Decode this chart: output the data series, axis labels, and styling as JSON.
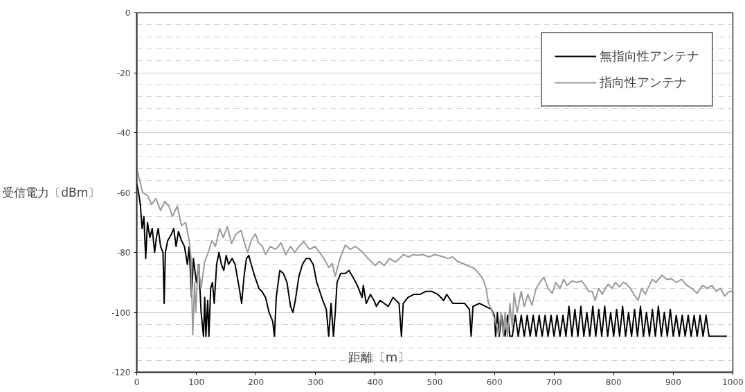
{
  "chart_data": {
    "type": "line",
    "xlabel": "距離〔m〕",
    "ylabel": "受信電力〔dBm〕",
    "xlim": [
      0,
      1000
    ],
    "ylim": [
      -120,
      0
    ],
    "xticks": [
      0,
      100,
      200,
      300,
      400,
      500,
      600,
      700,
      800,
      900,
      1000
    ],
    "yticks": [
      -120,
      -100,
      -80,
      -60,
      -40,
      -20,
      0
    ],
    "grid": true,
    "legend": "top right",
    "line_style": "solid",
    "marker": "none",
    "series": [
      {
        "name": "無指向性アンテナ",
        "color": "#000000",
        "x": [
          0,
          3,
          6,
          9,
          12,
          15,
          18,
          22,
          26,
          30,
          33,
          36,
          40,
          44,
          46,
          48,
          52,
          58,
          62,
          66,
          70,
          75,
          80,
          85,
          88,
          92,
          95,
          100,
          104,
          108,
          112,
          114,
          116,
          119,
          121,
          124,
          127,
          130,
          134,
          138,
          142,
          146,
          150,
          154,
          160,
          165,
          172,
          176,
          180,
          184,
          188,
          192,
          198,
          205,
          210,
          216,
          222,
          228,
          231,
          234,
          240,
          246,
          252,
          258,
          262,
          266,
          272,
          278,
          284,
          290,
          296,
          302,
          312,
          318,
          322,
          326,
          330,
          333,
          336,
          342,
          350,
          356,
          362,
          370,
          378,
          380,
          385,
          392,
          398,
          402,
          408,
          415,
          422,
          430,
          440,
          444,
          447,
          455,
          465,
          475,
          485,
          495,
          505,
          515,
          520,
          530,
          540,
          550,
          558,
          561,
          564,
          575,
          585,
          595,
          600,
          602,
          605,
          608,
          612,
          618,
          622,
          626,
          630,
          635,
          640,
          645,
          650,
          655,
          660,
          665,
          670,
          675,
          680,
          685,
          690,
          695,
          700,
          705,
          710,
          715,
          720,
          725,
          730,
          735,
          740,
          745,
          750,
          755,
          760,
          765,
          770,
          775,
          780,
          785,
          790,
          795,
          800,
          805,
          810,
          815,
          820,
          825,
          830,
          835,
          840,
          845,
          850,
          855,
          860,
          865,
          870,
          875,
          880,
          885,
          890,
          895,
          900,
          905,
          910,
          915,
          920,
          925,
          930,
          935,
          940,
          945,
          950,
          955,
          960,
          990
        ],
        "values": [
          -57,
          -60,
          -64,
          -72,
          -68,
          -82,
          -70,
          -75,
          -72,
          -80,
          -75,
          -72,
          -78,
          -80,
          -97,
          -80,
          -76,
          -74,
          -72,
          -78,
          -73,
          -76,
          -78,
          -84,
          -78,
          -95,
          -82,
          -90,
          -84,
          -100,
          -108,
          -95,
          -108,
          -96,
          -108,
          -92,
          -90,
          -97,
          -84,
          -80,
          -84,
          -86,
          -81,
          -84,
          -82,
          -84,
          -92,
          -97,
          -88,
          -82,
          -81,
          -84,
          -88,
          -92,
          -93,
          -95,
          -100,
          -103,
          -108,
          -95,
          -86,
          -87,
          -90,
          -98,
          -100,
          -96,
          -88,
          -84,
          -82,
          -82,
          -84,
          -90,
          -96,
          -99,
          -108,
          -97,
          -108,
          -100,
          -90,
          -87,
          -87,
          -86,
          -88,
          -91,
          -95,
          -91,
          -97,
          -94,
          -96,
          -98,
          -96,
          -97,
          -98,
          -95,
          -97,
          -108,
          -97,
          -95,
          -94,
          -94,
          -93,
          -93,
          -94,
          -96,
          -94,
          -97,
          -97,
          -97,
          -99,
          -108,
          -98,
          -97,
          -98,
          -99,
          -101,
          -108,
          -100,
          -108,
          -101,
          -108,
          -101,
          -108,
          -108,
          -101,
          -108,
          -101,
          -108,
          -101,
          -108,
          -101,
          -108,
          -101,
          -108,
          -101,
          -108,
          -101,
          -108,
          -101,
          -108,
          -101,
          -108,
          -98,
          -108,
          -99,
          -108,
          -98,
          -108,
          -100,
          -108,
          -98,
          -108,
          -99,
          -108,
          -98,
          -108,
          -100,
          -108,
          -99,
          -108,
          -98,
          -108,
          -100,
          -108,
          -99,
          -108,
          -98,
          -108,
          -100,
          -108,
          -99,
          -108,
          -98,
          -108,
          -100,
          -108,
          -99,
          -108,
          -101,
          -108,
          -101,
          -108,
          -101,
          -108,
          -101,
          -108,
          -101,
          -108,
          -101,
          -108,
          -108
        ]
      },
      {
        "name": "指向性アンテナ",
        "color": "#999999",
        "x": [
          0,
          5,
          10,
          18,
          25,
          32,
          40,
          47,
          54,
          60,
          68,
          75,
          82,
          88,
          91,
          94,
          97,
          99,
          103,
          108,
          114,
          120,
          126,
          132,
          139,
          145,
          152,
          159,
          166,
          175,
          181,
          186,
          192,
          199,
          205,
          211,
          216,
          224,
          233,
          242,
          250,
          258,
          265,
          272,
          280,
          290,
          299,
          306,
          314,
          322,
          328,
          333,
          341,
          350,
          358,
          367,
          378,
          388,
          400,
          407,
          415,
          424,
          434,
          441,
          447,
          456,
          464,
          472,
          480,
          490,
          500,
          513,
          522,
          530,
          538,
          547,
          556,
          566,
          574,
          581,
          586,
          590,
          595,
          599,
          603,
          607,
          611,
          615,
          618,
          622,
          626,
          630,
          633,
          638,
          645,
          650,
          656,
          663,
          670,
          676,
          683,
          690,
          697,
          703,
          710,
          716,
          722,
          730,
          738,
          746,
          752,
          758,
          764,
          769,
          775,
          781,
          786,
          791,
          797,
          803,
          810,
          816,
          822,
          828,
          834,
          841,
          847,
          853,
          859,
          865,
          871,
          881,
          889,
          897,
          905,
          914,
          923,
          931,
          940,
          949,
          957,
          965,
          972,
          979,
          986,
          994,
          1000
        ],
        "values": [
          -52,
          -56,
          -60,
          -61,
          -64,
          -62,
          -66,
          -63,
          -64.5,
          -68,
          -64.5,
          -71,
          -70,
          -76,
          -82,
          -107.5,
          -90,
          -100,
          -84,
          -92,
          -83,
          -80,
          -76,
          -78,
          -72,
          -75,
          -71.4,
          -77,
          -74,
          -72.6,
          -77,
          -80,
          -76,
          -73.8,
          -77,
          -78,
          -80.7,
          -78,
          -79,
          -76.8,
          -80.7,
          -78,
          -80,
          -78,
          -76.4,
          -79,
          -78,
          -79.8,
          -82,
          -85,
          -83.7,
          -87.9,
          -82,
          -77.5,
          -79,
          -78,
          -79.8,
          -82,
          -84.4,
          -83,
          -84.4,
          -82,
          -83.2,
          -82,
          -80.7,
          -81.5,
          -80.7,
          -81,
          -80.7,
          -81.5,
          -80.7,
          -81.4,
          -82,
          -81.5,
          -83,
          -83.7,
          -84.5,
          -85.3,
          -87,
          -89,
          -92,
          -96.9,
          -99,
          -101.5,
          -104,
          -107.5,
          -100,
          -108,
          -100,
          -108,
          -97,
          -105,
          -93.6,
          -100,
          -93,
          -98,
          -94,
          -97.6,
          -92,
          -90,
          -88.3,
          -92,
          -93.6,
          -90,
          -92,
          -89,
          -91,
          -89.5,
          -90,
          -89.5,
          -91,
          -93,
          -93,
          -96,
          -92,
          -94,
          -92,
          -90.6,
          -92,
          -90,
          -91.5,
          -90,
          -90.6,
          -92,
          -94,
          -96,
          -92,
          -94,
          -91.3,
          -89,
          -90,
          -87.6,
          -89,
          -88.8,
          -90,
          -89,
          -91,
          -92,
          -93.6,
          -91,
          -92,
          -91,
          -93,
          -92,
          -94.5,
          -93,
          -93
        ]
      }
    ]
  }
}
